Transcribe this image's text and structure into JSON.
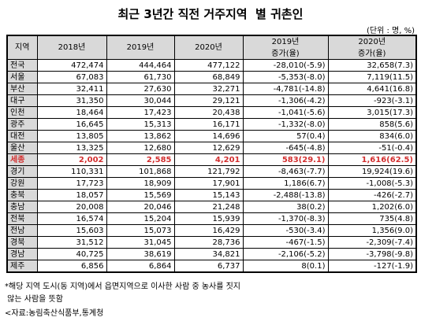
{
  "title": "최근 3년간 직전 거주지역  별 귀촌인",
  "unit": "(단위 : 명, %)",
  "header": {
    "region": "지역",
    "y2018": "2018년",
    "y2019": "2019년",
    "y2020": "2020년",
    "c2019_top": "2019년",
    "c2019_bottom": "증가(율)",
    "c2020_top": "2020년",
    "c2020_bottom": "증가(율)"
  },
  "rows": [
    {
      "region": "전국",
      "y2018": "472,474",
      "y2019": "444,464",
      "y2020": "477,122",
      "c2019": "-28,010(-5.9)",
      "c2020": "32,658(7.3)"
    },
    {
      "region": "서울",
      "y2018": "67,083",
      "y2019": "61,730",
      "y2020": "68,849",
      "c2019": "-5,353(-8.0)",
      "c2020": "7,119(11.5)"
    },
    {
      "region": "부산",
      "y2018": "32,411",
      "y2019": "27,630",
      "y2020": "32,271",
      "c2019": "-4,781(-14.8)",
      "c2020": "4,641(16.8)"
    },
    {
      "region": "대구",
      "y2018": "31,350",
      "y2019": "30,044",
      "y2020": "29,121",
      "c2019": "-1,306(-4.2)",
      "c2020": "-923(-3.1)"
    },
    {
      "region": "인천",
      "y2018": "18,464",
      "y2019": "17,423",
      "y2020": "20,438",
      "c2019": "-1,041(-5.6)",
      "c2020": "3,015(17.3)"
    },
    {
      "region": "광주",
      "y2018": "16,645",
      "y2019": "15,313",
      "y2020": "16,171",
      "c2019": "-1,332(-8.0)",
      "c2020": "858(5.6)"
    },
    {
      "region": "대전",
      "y2018": "13,805",
      "y2019": "13,862",
      "y2020": "14,696",
      "c2019": "57(0.4)",
      "c2020": "834(6.0)"
    },
    {
      "region": "울산",
      "y2018": "13,325",
      "y2019": "12,680",
      "y2020": "12,629",
      "c2019": "-645(-4.8)",
      "c2020": "-51(-0.4)"
    },
    {
      "region": "세종",
      "y2018": "2,002",
      "y2019": "2,585",
      "y2020": "4,201",
      "c2019": "583(29.1)",
      "c2020": "1,616(62.5)",
      "highlight": true
    },
    {
      "region": "경기",
      "y2018": "110,331",
      "y2019": "101,868",
      "y2020": "121,792",
      "c2019": "-8,463(-7.7)",
      "c2020": "19,924(19.6)"
    },
    {
      "region": "강원",
      "y2018": "17,723",
      "y2019": "18,909",
      "y2020": "17,901",
      "c2019": "1,186(6.7)",
      "c2020": "-1,008(-5.3)"
    },
    {
      "region": "충북",
      "y2018": "18,057",
      "y2019": "15,569",
      "y2020": "15,143",
      "c2019": "-2,488(-13.8)",
      "c2020": "-426(-2.7)"
    },
    {
      "region": "충남",
      "y2018": "20,008",
      "y2019": "20,046",
      "y2020": "21,248",
      "c2019": "38(0.2)",
      "c2020": "1,202(6.0)"
    },
    {
      "region": "전북",
      "y2018": "16,574",
      "y2019": "15,204",
      "y2020": "15,939",
      "c2019": "-1,370(-8.3)",
      "c2020": "735(4.8)"
    },
    {
      "region": "전남",
      "y2018": "15,603",
      "y2019": "15,073",
      "y2020": "16,429",
      "c2019": "-530(-3.4)",
      "c2020": "1,356(9.0)"
    },
    {
      "region": "경북",
      "y2018": "31,512",
      "y2019": "31,045",
      "y2020": "28,736",
      "c2019": "-467(-1.5)",
      "c2020": "-2,309(-7.4)"
    },
    {
      "region": "경남",
      "y2018": "40,725",
      "y2019": "38,619",
      "y2020": "34,821",
      "c2019": "-2,106(-5.2)",
      "c2020": "-3,798(-9.8)"
    },
    {
      "region": "제주",
      "y2018": "6,856",
      "y2019": "6,864",
      "y2020": "6,737",
      "c2019": "8(0.1)",
      "c2020": "-127(-1.9)"
    }
  ],
  "notes": {
    "line1": "*해당 지역 도시(동 지역)에서 읍면지역으로 이사한 사람 중 농사를 짓지",
    "line2": " 않는 사람을 뜻함",
    "source": "<자료:농림축산식품부,통계청"
  },
  "colors": {
    "header_bg": "#d9d9d9",
    "highlight_text": "#d32f2f"
  }
}
